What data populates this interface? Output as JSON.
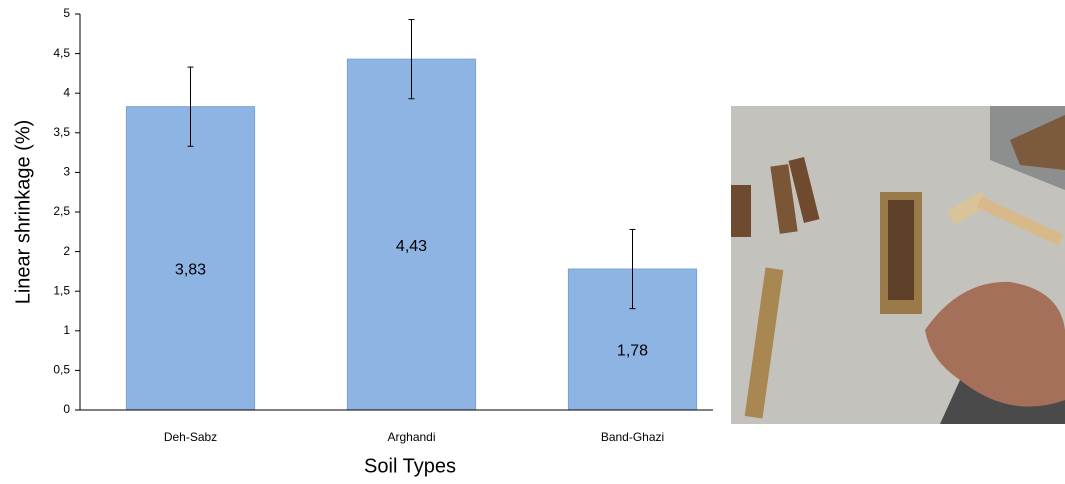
{
  "chart_data": {
    "type": "bar",
    "categories": [
      "Deh-Sabz",
      "Arghandi",
      "Band-Ghazi"
    ],
    "values": [
      3.83,
      4.43,
      1.78
    ],
    "value_labels": [
      "3,83",
      "4,43",
      "1,78"
    ],
    "errors": [
      0.5,
      0.5,
      0.5
    ],
    "color": "#8eb4e3",
    "x_label": "Soil Types",
    "y_label": "Linear shrinkage (%)",
    "ylim": [
      0,
      5
    ],
    "yticks": [
      0,
      {
        "value": 0.5,
        "label": "0,5"
      },
      1,
      {
        "value": 1.5,
        "label": "1,5"
      },
      2,
      {
        "value": 2.5,
        "label": "2,5"
      },
      3,
      {
        "value": 3.5,
        "label": "3,5"
      },
      4,
      {
        "value": 4.5,
        "label": "4,5"
      },
      5
    ],
    "grid": false
  }
}
